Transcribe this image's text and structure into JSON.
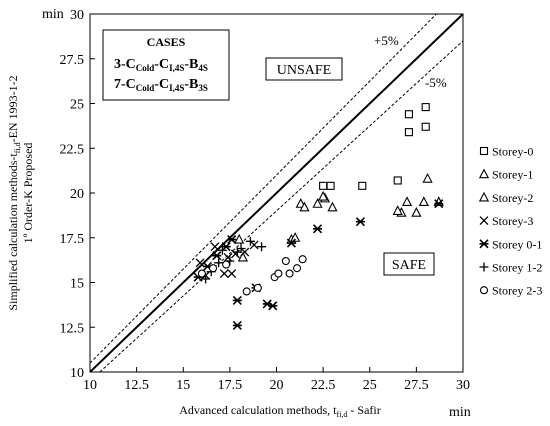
{
  "chart_data": {
    "type": "scatter",
    "xlim": [
      10,
      30
    ],
    "ylim": [
      10,
      30
    ],
    "x_ticks": [
      "10",
      "12.5",
      "15",
      "17.5",
      "20",
      "22.5",
      "25",
      "27.5",
      "30"
    ],
    "y_ticks": [
      "10",
      "12.5",
      "15",
      "17.5",
      "20",
      "22.5",
      "25",
      "27.5",
      "30"
    ],
    "x_unit": "min",
    "y_unit": "min",
    "xlabel": "Advanced calculation methods, t",
    "xlabel_sub": "fi,d",
    "xlabel_after": " - Safir",
    "ylabel_line1": "Simplified calculation methods-t",
    "ylabel_line1_sub": "fi,d",
    "ylabel_line1_after": "-EN 1993-1-2",
    "ylabel_line2": "1º Order-K Proposed",
    "grid": false,
    "legend_position": "right",
    "region_labels": {
      "unsafe": "UNSAFE",
      "safe": "SAFE"
    },
    "reference_lines": [
      {
        "label": "",
        "slope": 1.0
      },
      {
        "label": "+5%",
        "slope": 1.05
      },
      {
        "label": "-5%",
        "slope": 0.95
      }
    ],
    "cases_box": {
      "title": "CASES",
      "line1": {
        "a": "3-C",
        "a_sub": "Cold",
        "b": "-C",
        "b_sub": "I,4S",
        "c": "-B",
        "c_sub": "4S"
      },
      "line2": {
        "a": "7-C",
        "a_sub": "Cold",
        "b": "-C",
        "b_sub": "I,4S",
        "c": "-B",
        "c_sub": "3S"
      }
    },
    "series": [
      {
        "name": "Storey-0",
        "marker": "square",
        "points": [
          [
            22.5,
            20.4
          ],
          [
            22.9,
            20.4
          ],
          [
            24.6,
            20.4
          ],
          [
            26.5,
            20.7
          ],
          [
            27.1,
            23.4
          ],
          [
            27.1,
            24.4
          ],
          [
            28.0,
            23.7
          ],
          [
            28.0,
            24.8
          ]
        ]
      },
      {
        "name": "Storey-1",
        "marker": "triangle",
        "points": [
          [
            21.3,
            19.4
          ],
          [
            22.2,
            19.4
          ],
          [
            22.6,
            19.7
          ],
          [
            23.0,
            19.2
          ],
          [
            26.7,
            18.9
          ],
          [
            27.0,
            19.5
          ],
          [
            27.5,
            18.9
          ],
          [
            27.9,
            19.5
          ],
          [
            28.1,
            20.8
          ]
        ]
      },
      {
        "name": "Storey-2",
        "marker": "triangle",
        "points": [
          [
            18.0,
            17.4
          ],
          [
            18.2,
            16.4
          ],
          [
            20.8,
            17.4
          ],
          [
            21.0,
            17.5
          ],
          [
            21.5,
            19.2
          ],
          [
            22.5,
            19.8
          ],
          [
            26.5,
            19.0
          ],
          [
            28.7,
            19.5
          ]
        ]
      },
      {
        "name": "Storey-3",
        "marker": "x",
        "points": [
          [
            15.9,
            16.1
          ],
          [
            16.2,
            15.4
          ],
          [
            16.7,
            17.0
          ],
          [
            17.2,
            15.5
          ],
          [
            17.4,
            16.4
          ],
          [
            17.6,
            15.5
          ],
          [
            17.8,
            16.6
          ],
          [
            18.3,
            16.7
          ],
          [
            18.8,
            17.1
          ]
        ]
      },
      {
        "name": "Storey 0-1",
        "marker": "asterisk",
        "points": [
          [
            15.8,
            15.3
          ],
          [
            16.3,
            15.9
          ],
          [
            16.8,
            16.5
          ],
          [
            17.3,
            17.0
          ],
          [
            17.6,
            17.4
          ],
          [
            17.9,
            14.0
          ],
          [
            17.9,
            12.6
          ],
          [
            18.9,
            14.7
          ],
          [
            19.5,
            13.8
          ],
          [
            19.8,
            13.7
          ],
          [
            20.8,
            17.2
          ],
          [
            22.2,
            18.0
          ],
          [
            24.5,
            18.4
          ],
          [
            28.7,
            19.4
          ]
        ]
      },
      {
        "name": "Storey 1-2",
        "marker": "plus",
        "points": [
          [
            16.2,
            15.2
          ],
          [
            16.5,
            15.6
          ],
          [
            16.9,
            16.1
          ],
          [
            17.1,
            16.8
          ],
          [
            17.5,
            16.2
          ],
          [
            17.9,
            16.7
          ],
          [
            18.1,
            16.9
          ],
          [
            18.6,
            17.3
          ],
          [
            19.2,
            17.0
          ]
        ]
      },
      {
        "name": "Storey 2-3",
        "marker": "circle",
        "points": [
          [
            16.0,
            15.5
          ],
          [
            16.6,
            15.8
          ],
          [
            17.3,
            16.0
          ],
          [
            18.4,
            14.5
          ],
          [
            19.0,
            14.7
          ],
          [
            19.9,
            15.3
          ],
          [
            20.1,
            15.5
          ],
          [
            20.7,
            15.5
          ],
          [
            21.1,
            15.8
          ],
          [
            21.4,
            16.3
          ],
          [
            20.5,
            16.2
          ]
        ]
      }
    ]
  }
}
